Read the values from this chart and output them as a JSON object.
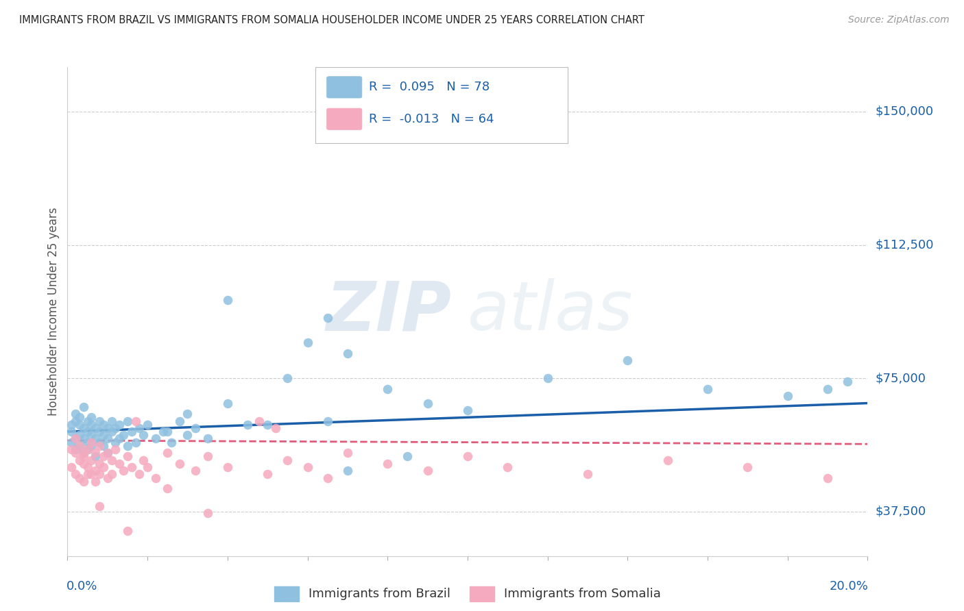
{
  "title": "IMMIGRANTS FROM BRAZIL VS IMMIGRANTS FROM SOMALIA HOUSEHOLDER INCOME UNDER 25 YEARS CORRELATION CHART",
  "source": "Source: ZipAtlas.com",
  "ylabel": "Householder Income Under 25 years",
  "xlim": [
    0.0,
    0.2
  ],
  "ylim": [
    25000,
    162500
  ],
  "yticks": [
    37500,
    75000,
    112500,
    150000
  ],
  "ytick_labels": [
    "$37,500",
    "$75,000",
    "$112,500",
    "$150,000"
  ],
  "legend_brazil_R": "0.095",
  "legend_brazil_N": "78",
  "legend_somalia_R": "-0.013",
  "legend_somalia_N": "64",
  "brazil_color": "#8FC0E0",
  "somalia_color": "#F5AABF",
  "brazil_line_color": "#1A5FA8",
  "somalia_line_color": "#E05A7A",
  "watermark_zip": "ZIP",
  "watermark_atlas": "atlas",
  "brazil_scatter_x": [
    0.001,
    0.001,
    0.001,
    0.002,
    0.002,
    0.002,
    0.002,
    0.003,
    0.003,
    0.003,
    0.003,
    0.004,
    0.004,
    0.004,
    0.004,
    0.005,
    0.005,
    0.005,
    0.005,
    0.006,
    0.006,
    0.006,
    0.006,
    0.007,
    0.007,
    0.007,
    0.008,
    0.008,
    0.008,
    0.009,
    0.009,
    0.009,
    0.01,
    0.01,
    0.01,
    0.011,
    0.011,
    0.012,
    0.012,
    0.013,
    0.013,
    0.014,
    0.015,
    0.015,
    0.016,
    0.017,
    0.018,
    0.019,
    0.02,
    0.022,
    0.024,
    0.026,
    0.028,
    0.03,
    0.032,
    0.035,
    0.04,
    0.04,
    0.05,
    0.055,
    0.06,
    0.065,
    0.07,
    0.08,
    0.09,
    0.1,
    0.12,
    0.14,
    0.16,
    0.18,
    0.19,
    0.195,
    0.065,
    0.025,
    0.03,
    0.045,
    0.07,
    0.085
  ],
  "brazil_scatter_y": [
    60000,
    57000,
    62000,
    58000,
    55000,
    63000,
    65000,
    59000,
    56000,
    62000,
    64000,
    58000,
    61000,
    54000,
    67000,
    60000,
    57000,
    63000,
    55000,
    59000,
    62000,
    56000,
    64000,
    58000,
    61000,
    53000,
    60000,
    57000,
    63000,
    59000,
    56000,
    62000,
    58000,
    61000,
    54000,
    60000,
    63000,
    57000,
    61000,
    58000,
    62000,
    59000,
    56000,
    63000,
    60000,
    57000,
    61000,
    59000,
    62000,
    58000,
    60000,
    57000,
    63000,
    59000,
    61000,
    58000,
    97000,
    68000,
    62000,
    75000,
    85000,
    92000,
    82000,
    72000,
    68000,
    66000,
    75000,
    80000,
    72000,
    70000,
    72000,
    74000,
    63000,
    60000,
    65000,
    62000,
    49000,
    53000
  ],
  "somalia_scatter_x": [
    0.001,
    0.001,
    0.002,
    0.002,
    0.002,
    0.003,
    0.003,
    0.003,
    0.004,
    0.004,
    0.004,
    0.005,
    0.005,
    0.005,
    0.006,
    0.006,
    0.007,
    0.007,
    0.007,
    0.008,
    0.008,
    0.008,
    0.009,
    0.009,
    0.01,
    0.01,
    0.011,
    0.011,
    0.012,
    0.013,
    0.014,
    0.015,
    0.016,
    0.017,
    0.018,
    0.019,
    0.02,
    0.022,
    0.025,
    0.028,
    0.032,
    0.035,
    0.04,
    0.05,
    0.055,
    0.06,
    0.065,
    0.07,
    0.08,
    0.09,
    0.1,
    0.11,
    0.13,
    0.15,
    0.17,
    0.19,
    0.048,
    0.052,
    0.035,
    0.025,
    0.015,
    0.008,
    0.006,
    0.004
  ],
  "somalia_scatter_y": [
    55000,
    50000,
    54000,
    48000,
    58000,
    52000,
    47000,
    56000,
    51000,
    46000,
    53000,
    50000,
    55000,
    48000,
    52000,
    57000,
    49000,
    54000,
    46000,
    51000,
    56000,
    48000,
    53000,
    50000,
    47000,
    54000,
    52000,
    48000,
    55000,
    51000,
    49000,
    53000,
    50000,
    63000,
    48000,
    52000,
    50000,
    47000,
    54000,
    51000,
    49000,
    53000,
    50000,
    48000,
    52000,
    50000,
    47000,
    54000,
    51000,
    49000,
    53000,
    50000,
    48000,
    52000,
    50000,
    47000,
    63000,
    61000,
    37000,
    44000,
    32000,
    39000,
    48000,
    54000
  ]
}
